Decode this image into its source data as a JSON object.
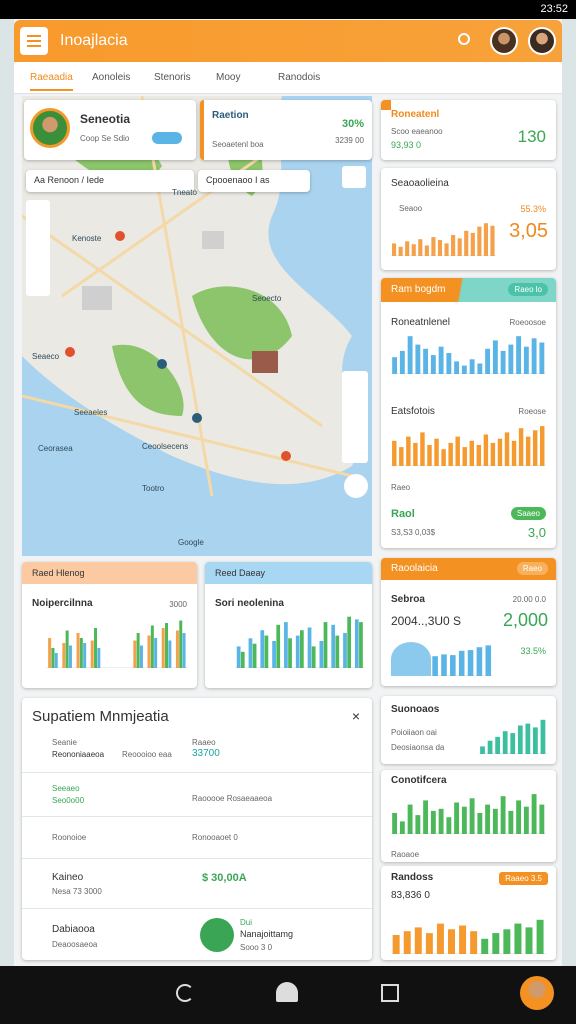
{
  "status_bar": {
    "time": "23:52"
  },
  "header": {
    "title": "Inoajlacia"
  },
  "tabs": [
    "Raeaadia",
    "Aonoleis",
    "Stenoris",
    "Mooy",
    "Ranodois"
  ],
  "map": {
    "profile_card": {
      "name": "Seneotia",
      "subtitle": "Coop Se Sdio"
    },
    "stat_card": {
      "title": "Raetion",
      "subtitle": "Seoaetenl boa",
      "value": "30%",
      "amount": "3239 00"
    },
    "search": [
      "Aa Renoon / Iede",
      "Cpooenaoo I as"
    ],
    "labels": [
      "Seaeco",
      "Kenoste",
      "Ceorasea",
      "Tneato",
      "Seoecto",
      "Ceoolsecens",
      "Seeaeles",
      "Tootro",
      "Google"
    ]
  },
  "right": {
    "summary": {
      "title": "Roneatenl",
      "subtitle": "Scoo eaeanoo",
      "value": "130",
      "amount": "93,93 0"
    },
    "trend": {
      "title": "Seaoaolieina",
      "label": "Seaoo",
      "percent": "55.3%",
      "value": "3,05",
      "chart": {
        "color": "#f5a04a",
        "ylim": [
          0,
          100
        ],
        "values": [
          30,
          22,
          35,
          28,
          40,
          25,
          45,
          38,
          30,
          50,
          42,
          60,
          55,
          70,
          78,
          72
        ]
      }
    },
    "group": {
      "header": "Ram bogdm",
      "pill": "Raeo lo",
      "charts": [
        {
          "title": "Roneatnlenel",
          "note": "Roeoosoe",
          "color": "#5ab4e5",
          "ylim": [
            0,
            100
          ],
          "values": [
            40,
            55,
            90,
            70,
            60,
            45,
            65,
            50,
            30,
            20,
            35,
            25,
            60,
            80,
            55,
            70,
            90,
            65,
            85,
            75
          ]
        },
        {
          "title": "Eatsfotois",
          "note": "Roeose",
          "color": "#f59a2e",
          "ylim": [
            0,
            100
          ],
          "values": [
            60,
            45,
            70,
            55,
            80,
            50,
            65,
            40,
            55,
            70,
            45,
            60,
            50,
            75,
            55,
            65,
            80,
            60,
            90,
            70,
            85,
            95
          ]
        }
      ],
      "footer_label": "Raeo",
      "footer_title": "Raol",
      "footer_pill": "Saaeo",
      "footer_amount": "S3,S3 0,03$",
      "footer_value": "3,0"
    },
    "stats": {
      "header": "Raoolaicia",
      "pill": "Raeo",
      "title": "Sebroa",
      "subtitle": "2004..,3U0 S",
      "note": "20.00 0.0",
      "value": "2,000",
      "percent": "33.5%",
      "chart": {
        "color": "#5ab4e5",
        "ylim": [
          0,
          100
        ],
        "values": [
          55,
          60,
          58,
          70,
          72,
          80,
          85
        ]
      }
    },
    "list1": {
      "title": "Suonoaos",
      "lines": [
        "Poioiiaon oai",
        "Deosiaonsa da"
      ],
      "chart": {
        "color": "#3cbfa0",
        "ylim": [
          0,
          100
        ],
        "values": [
          20,
          35,
          45,
          60,
          55,
          75,
          80,
          70,
          90
        ]
      }
    },
    "list2": {
      "title": "Conotifcera",
      "footer": "Raoaoe",
      "chart": {
        "color": "#4cb85a",
        "ylim": [
          0,
          100
        ],
        "values": [
          50,
          30,
          70,
          45,
          80,
          55,
          60,
          40,
          75,
          65,
          85,
          50,
          70,
          60,
          90,
          55,
          80,
          65,
          95,
          70
        ]
      }
    },
    "list3": {
      "title": "Randoss",
      "amount": "83,836 0",
      "pill": "Raaeo 3.5",
      "chart": {
        "series": [
          {
            "color": "#f59a2e",
            "values": [
              50,
              60,
              70,
              55,
              80,
              65,
              75,
              60,
              null,
              null,
              null,
              null,
              null,
              null
            ]
          },
          {
            "color": "#4cb85a",
            "values": [
              null,
              null,
              null,
              null,
              null,
              null,
              null,
              null,
              40,
              55,
              65,
              80,
              70,
              90
            ]
          }
        ],
        "ylim": [
          0,
          100
        ]
      }
    }
  },
  "bottom": {
    "left": {
      "header": "Raed Hlenog",
      "title": "Noipercilnna",
      "note": "3000",
      "chart": {
        "ylim": [
          0,
          100
        ],
        "series": [
          {
            "color": "#f5a04a",
            "values": [
              60,
              50,
              70,
              55,
              null,
              null,
              55,
              65,
              80,
              75
            ]
          },
          {
            "color": "#4cb85a",
            "values": [
              40,
              75,
              60,
              80,
              null,
              null,
              70,
              85,
              90,
              95
            ]
          },
          {
            "color": "#5ab4e5",
            "values": [
              30,
              45,
              50,
              40,
              null,
              null,
              45,
              60,
              55,
              70
            ]
          }
        ]
      }
    },
    "mid": {
      "header": "Reed Daeay",
      "title": "Sori neolenina",
      "chart": {
        "ylim": [
          0,
          100
        ],
        "series": [
          {
            "color": "#5ab4e5",
            "values": [
              40,
              55,
              70,
              50,
              85,
              60,
              75,
              50,
              80,
              65,
              90
            ]
          },
          {
            "color": "#4cb85a",
            "values": [
              30,
              45,
              60,
              80,
              55,
              70,
              40,
              85,
              60,
              95,
              85
            ]
          }
        ]
      }
    }
  },
  "panel": {
    "title": "Supatiem Mnmjeatia",
    "rows": [
      {
        "title": "Seanie",
        "subtitle": "Reononiaaeoa",
        "middle": "Reoooioo eaa",
        "right_title": "Raaeo",
        "right_value": "33700"
      },
      {
        "title": "Seeaeo",
        "subtitle": "Seo0o00",
        "middle": "Raooooe Rosaeaaeoa"
      },
      {
        "title": "Roonoioe",
        "middle": "Ronooaoet 0"
      },
      {
        "title": "Kaineo",
        "subtitle": "Nesa 73 3000",
        "right_value": "$ 30,00A"
      },
      {
        "title": "Dabiaooa",
        "subtitle": "Deaoosaeoa",
        "right_title": "Dui",
        "right_subtitle": "Nanajoittamg",
        "right_note": "Sooo 3 0"
      }
    ]
  }
}
